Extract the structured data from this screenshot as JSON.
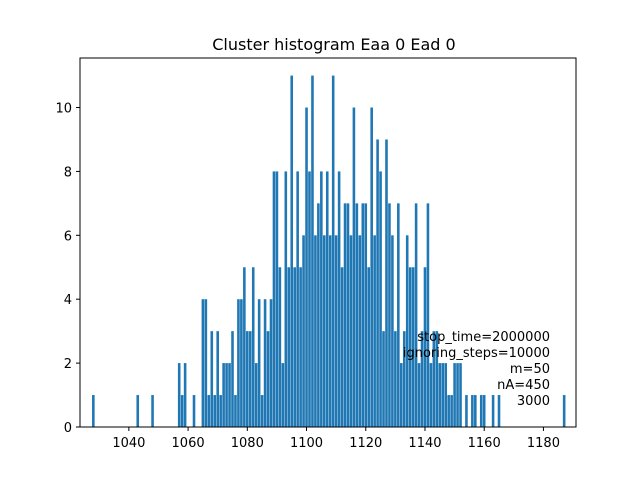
{
  "chart_data": {
    "type": "bar",
    "title": "Cluster histogram Eaa 0 Ead 0",
    "xlabel": "",
    "ylabel": "",
    "xlim": [
      1023.5,
      1191.0
    ],
    "ylim": [
      0,
      11.55
    ],
    "x_ticks": [
      1040,
      1060,
      1080,
      1100,
      1120,
      1140,
      1160,
      1180
    ],
    "y_ticks": [
      0,
      2,
      4,
      6,
      8,
      10
    ],
    "bin_width": 0.87,
    "color": "#1f77b4",
    "grid": false,
    "x": [
      1028,
      1043,
      1048,
      1057,
      1058,
      1059,
      1062,
      1065,
      1066,
      1067,
      1068,
      1069,
      1070,
      1071,
      1072,
      1073,
      1074,
      1075,
      1076,
      1077,
      1078,
      1079,
      1080,
      1081,
      1082,
      1083,
      1084,
      1085,
      1086,
      1087,
      1088,
      1089,
      1090,
      1091,
      1092,
      1093,
      1094,
      1095,
      1096,
      1097,
      1098,
      1099,
      1100,
      1101,
      1102,
      1103,
      1104,
      1105,
      1106,
      1107,
      1108,
      1109,
      1110,
      1111,
      1112,
      1113,
      1114,
      1115,
      1116,
      1117,
      1118,
      1119,
      1120,
      1121,
      1122,
      1123,
      1124,
      1125,
      1126,
      1127,
      1128,
      1129,
      1130,
      1131,
      1132,
      1133,
      1134,
      1135,
      1136,
      1137,
      1138,
      1139,
      1140,
      1141,
      1142,
      1143,
      1144,
      1145,
      1146,
      1147,
      1148,
      1149,
      1150,
      1151,
      1152,
      1153,
      1154,
      1155,
      1156,
      1157,
      1158,
      1159,
      1160,
      1161,
      1162,
      1163,
      1164,
      1165,
      1166,
      1167,
      1168,
      1169,
      1170,
      1171,
      1172,
      1173,
      1174,
      1175,
      1176,
      1177,
      1178,
      1179,
      1180,
      1181,
      1182,
      1183,
      1184,
      1185,
      1186,
      1187
    ],
    "values": [
      1,
      1,
      1,
      2,
      1,
      2,
      1,
      4,
      4,
      1,
      3,
      1,
      3,
      1,
      2,
      2,
      2,
      3,
      1,
      4,
      4,
      5,
      3,
      3,
      5,
      2,
      4,
      1,
      4,
      3,
      4,
      8,
      8,
      5,
      2,
      8,
      5,
      11,
      5,
      8,
      5,
      6,
      10,
      8,
      11,
      6,
      7,
      8,
      6,
      8,
      6,
      11,
      6,
      8,
      5,
      7,
      7,
      6,
      10,
      7,
      6,
      7,
      7,
      5,
      10,
      6,
      9,
      8,
      3,
      9,
      7,
      6,
      3,
      7,
      2,
      3,
      6,
      5,
      5,
      7,
      2,
      3,
      5,
      7,
      2,
      3,
      3,
      2,
      2,
      2,
      1,
      1,
      2,
      2,
      2,
      0,
      1,
      0,
      1,
      1,
      0,
      1,
      1,
      0,
      0,
      1,
      0,
      1,
      0,
      0,
      0,
      0,
      0,
      0,
      0,
      0,
      0,
      0,
      0,
      0,
      0,
      0,
      0,
      0,
      0,
      0,
      0,
      0,
      0,
      1
    ]
  },
  "annotation": {
    "lines": [
      "stop_time=2000000",
      "ignoring_steps=10000",
      "m=50",
      "nA=450",
      "3000"
    ]
  }
}
